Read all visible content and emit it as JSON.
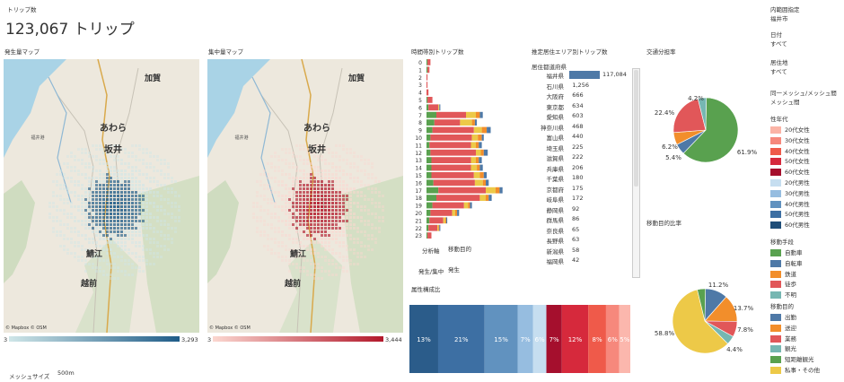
{
  "header": {
    "kpi_label": "トリップ数",
    "kpi_value": "123,067 トリップ"
  },
  "maps": {
    "origin": {
      "title": "発生量マップ",
      "min": "3",
      "max": "3,293",
      "credit": "© Mapbox © OSM",
      "lowColor": "#cfe6e8",
      "highColor": "#1f5c88"
    },
    "dest": {
      "title": "集中量マップ",
      "min": "3",
      "max": "3,444",
      "credit": "© Mapbox © OSM",
      "lowColor": "#fbd7d0",
      "highColor": "#b2182b"
    },
    "places": {
      "kaga": "加賀",
      "awara": "あわら",
      "sakai": "坂井",
      "sabae": "鯖江",
      "echizen": "越前",
      "fukui_port": "福井港"
    }
  },
  "mesh": {
    "label": "メッシュサイズ",
    "value": "500m"
  },
  "hourly": {
    "title": "時間帯別トリップ数",
    "hours": [
      "0",
      "1",
      "2",
      "3",
      "4",
      "5",
      "6",
      "7",
      "8",
      "9",
      "10",
      "11",
      "12",
      "13",
      "14",
      "15",
      "16",
      "17",
      "18",
      "19",
      "20",
      "21",
      "22",
      "23"
    ],
    "segments": [
      [
        1,
        3,
        0,
        0,
        0
      ],
      [
        1,
        2,
        0,
        0,
        0
      ],
      [
        0,
        1,
        0,
        0,
        0
      ],
      [
        0,
        1,
        0,
        0,
        0
      ],
      [
        0,
        2,
        0,
        0,
        0
      ],
      [
        1,
        5,
        0,
        0,
        0
      ],
      [
        2,
        10,
        1,
        0,
        1
      ],
      [
        10,
        30,
        10,
        4,
        3
      ],
      [
        8,
        26,
        12,
        3,
        2
      ],
      [
        6,
        42,
        8,
        5,
        4
      ],
      [
        4,
        42,
        6,
        4,
        2
      ],
      [
        3,
        42,
        5,
        3,
        3
      ],
      [
        4,
        46,
        5,
        3,
        4
      ],
      [
        5,
        40,
        5,
        3,
        3
      ],
      [
        5,
        40,
        6,
        3,
        3
      ],
      [
        5,
        43,
        6,
        4,
        3
      ],
      [
        7,
        42,
        8,
        3,
        3
      ],
      [
        12,
        48,
        10,
        4,
        3
      ],
      [
        10,
        44,
        6,
        3,
        3
      ],
      [
        6,
        32,
        4,
        2,
        2
      ],
      [
        4,
        22,
        3,
        2,
        2
      ],
      [
        3,
        14,
        2,
        1,
        1
      ],
      [
        2,
        9,
        1,
        1,
        1
      ],
      [
        1,
        4,
        0,
        0,
        0
      ]
    ],
    "colors": [
      "#59a14f",
      "#e15759",
      "#edc948",
      "#f28e2b",
      "#4e79a7"
    ],
    "analysis_label": "分析軸",
    "analysis_value": "移動目的",
    "gen_label": "発生/集中",
    "gen_value": "発生"
  },
  "residence": {
    "title": "推定居住エリア別トリップ数",
    "header": "居住都道府県",
    "rows": [
      [
        "福井県",
        "117,084",
        117084
      ],
      [
        "石川県",
        "1,256",
        1256
      ],
      [
        "大阪府",
        "666",
        666
      ],
      [
        "東京都",
        "634",
        634
      ],
      [
        "愛知県",
        "603",
        603
      ],
      [
        "神奈川県",
        "468",
        468
      ],
      [
        "富山県",
        "440",
        440
      ],
      [
        "埼玉県",
        "225",
        225
      ],
      [
        "滋賀県",
        "222",
        222
      ],
      [
        "兵庫県",
        "206",
        206
      ],
      [
        "千葉県",
        "180",
        180
      ],
      [
        "京都府",
        "175",
        175
      ],
      [
        "岐阜県",
        "172",
        172
      ],
      [
        "静岡県",
        "92",
        92
      ],
      [
        "群馬県",
        "86",
        86
      ],
      [
        "奈良県",
        "65",
        65
      ],
      [
        "長野県",
        "63",
        63
      ],
      [
        "新潟県",
        "58",
        58
      ],
      [
        "福岡県",
        "42",
        42
      ]
    ]
  },
  "transport_share": {
    "title": "交通分担率",
    "slices": [
      {
        "label": "61.9%",
        "value": 61.9,
        "color": "#59a14f"
      },
      {
        "label": "5.4%",
        "value": 5.4,
        "color": "#4e79a7"
      },
      {
        "label": "6.2%",
        "value": 6.2,
        "color": "#f28e2b"
      },
      {
        "label": "22.4%",
        "value": 22.4,
        "color": "#e15759"
      },
      {
        "label": "4.2%",
        "value": 4.2,
        "color": "#76b7b2"
      }
    ]
  },
  "purpose_share": {
    "title": "移動目的比率",
    "slices": [
      {
        "label": "11.2%",
        "value": 11.2,
        "color": "#4e79a7"
      },
      {
        "label": "13.7%",
        "value": 13.7,
        "color": "#f28e2b"
      },
      {
        "label": "7.8%",
        "value": 7.8,
        "color": "#e15759"
      },
      {
        "label": "4.4%",
        "value": 4.4,
        "color": "#76b7b2"
      },
      {
        "label": "58.8%",
        "value": 58.8,
        "color": "#edc948"
      },
      {
        "label": "",
        "value": 4.1,
        "color": "#59a14f"
      }
    ]
  },
  "attr": {
    "title": "属性構成比",
    "segments": [
      {
        "label": "13%",
        "value": 13,
        "color": "#2b5c8a"
      },
      {
        "label": "21%",
        "value": 21,
        "color": "#3d6fa3"
      },
      {
        "label": "15%",
        "value": 15,
        "color": "#6192bf"
      },
      {
        "label": "7%",
        "value": 7,
        "color": "#96bde0"
      },
      {
        "label": "6%",
        "value": 6,
        "color": "#c6def0"
      },
      {
        "label": "7%",
        "value": 7,
        "color": "#a50f2d"
      },
      {
        "label": "12%",
        "value": 12,
        "color": "#d6293c"
      },
      {
        "label": "8%",
        "value": 8,
        "color": "#ef5a4a"
      },
      {
        "label": "6%",
        "value": 6,
        "color": "#f6887c"
      },
      {
        "label": "5%",
        "value": 5,
        "color": "#fbb7ad"
      }
    ]
  },
  "filters": {
    "area_label": "内範囲指定",
    "area_value": "福井市",
    "date_label": "日付",
    "date_value": "すべて",
    "residence_label": "居住地",
    "residence_value": "すべて",
    "mesh_label": "同一メッシュ/メッシュ間",
    "mesh_value": "メッシュ間"
  },
  "legend": {
    "age_title": "性年代",
    "age": [
      [
        "20代女性",
        "#fbb4a6"
      ],
      [
        "30代女性",
        "#f6887c"
      ],
      [
        "40代女性",
        "#ef5a4a"
      ],
      [
        "50代女性",
        "#d6293c"
      ],
      [
        "60代女性",
        "#a50f2d"
      ],
      [
        "20代男性",
        "#c6def0"
      ],
      [
        "30代男性",
        "#96bde0"
      ],
      [
        "40代男性",
        "#6192bf"
      ],
      [
        "50代男性",
        "#3d6fa3"
      ],
      [
        "60代男性",
        "#1f4e79"
      ]
    ],
    "mode_title": "移動手段",
    "mode": [
      [
        "自動車",
        "#59a14f"
      ],
      [
        "自転車",
        "#4e79a7"
      ],
      [
        "鉄道",
        "#f28e2b"
      ],
      [
        "徒歩",
        "#e15759"
      ],
      [
        "不明",
        "#76b7b2"
      ]
    ],
    "purpose_title": "移動目的",
    "purpose": [
      [
        "出勤",
        "#4e79a7"
      ],
      [
        "送迎",
        "#f28e2b"
      ],
      [
        "業務",
        "#e15759"
      ],
      [
        "観光",
        "#76b7b2"
      ],
      [
        "短距離観光",
        "#59a14f"
      ],
      [
        "私事・その他",
        "#edc948"
      ]
    ]
  }
}
